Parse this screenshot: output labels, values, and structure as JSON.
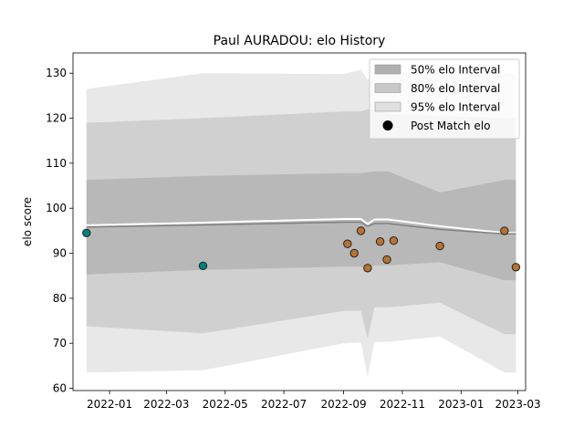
{
  "chart_data": {
    "type": "area",
    "title": "Paul AURADOU: elo History",
    "xlabel": "",
    "ylabel": "elo score",
    "xlim": [
      "2021-11-24",
      "2023-03-09"
    ],
    "ylim": [
      59.5,
      134.5
    ],
    "x_ticks": [
      "2022-01-01",
      "2022-03-01",
      "2022-05-01",
      "2022-07-01",
      "2022-09-01",
      "2022-11-01",
      "2023-01-01",
      "2023-03-01"
    ],
    "x_tick_labels": [
      "2022-01",
      "2022-03",
      "2022-05",
      "2022-07",
      "2022-09",
      "2022-11",
      "2023-01",
      "2023-03"
    ],
    "y_ticks": [
      60,
      70,
      80,
      90,
      100,
      110,
      120,
      130
    ],
    "grid": false,
    "legend_position": "top-right",
    "legend": [
      {
        "label": "50% elo Interval",
        "kind": "patch",
        "color": "#b0b0b0"
      },
      {
        "label": "80% elo Interval",
        "kind": "patch",
        "color": "#c8c8c8"
      },
      {
        "label": "95% elo Interval",
        "kind": "patch",
        "color": "#e0e0e0"
      },
      {
        "label": "Post Match elo",
        "kind": "marker",
        "color": "#000000"
      }
    ],
    "band_dates": [
      "2021-12-08",
      "2022-04-08",
      "2022-09-01",
      "2022-09-19",
      "2022-09-26",
      "2022-10-03",
      "2022-10-17",
      "2022-12-10",
      "2023-02-15",
      "2023-02-27"
    ],
    "bands": [
      {
        "name": "95% elo Interval",
        "color": "#e0e0e0",
        "upper": [
          126.5,
          130.0,
          129.8,
          130.8,
          128.5,
          130.5,
          130.0,
          130.0,
          130.0,
          130.0
        ],
        "lower": [
          63.5,
          64.0,
          70.0,
          70.2,
          62.5,
          70.3,
          70.3,
          71.5,
          63.5,
          63.5
        ]
      },
      {
        "name": "80% elo Interval",
        "color": "#c8c8c8",
        "upper": [
          119.0,
          120.0,
          121.5,
          121.5,
          122.0,
          122.0,
          121.0,
          120.5,
          120.0,
          120.0
        ],
        "lower": [
          73.8,
          72.2,
          77.2,
          77.2,
          71.0,
          78.0,
          78.0,
          79.0,
          72.0,
          72.0
        ]
      },
      {
        "name": "50% elo Interval",
        "color": "#b0b0b0",
        "upper": [
          106.3,
          107.2,
          107.8,
          107.8,
          108.0,
          108.2,
          108.2,
          103.5,
          106.3,
          106.3
        ],
        "lower": [
          85.3,
          86.3,
          87.0,
          87.0,
          86.5,
          87.3,
          87.3,
          88.0,
          84.0,
          84.0
        ]
      }
    ],
    "mean_line": {
      "color": "#ffffff",
      "x": [
        "2021-12-08",
        "2022-04-08",
        "2022-09-01",
        "2022-09-19",
        "2022-09-26",
        "2022-10-03",
        "2022-10-17",
        "2022-12-10",
        "2023-02-15",
        "2023-02-27"
      ],
      "y": [
        96.2,
        96.8,
        97.6,
        97.6,
        96.5,
        97.5,
        97.5,
        96.0,
        94.5,
        94.5
      ]
    },
    "median_line": {
      "color": "#808080",
      "x": [
        "2021-12-08",
        "2022-04-08",
        "2022-09-01",
        "2022-09-19",
        "2022-09-26",
        "2022-10-03",
        "2022-10-17",
        "2022-12-10",
        "2023-02-15",
        "2023-02-27"
      ],
      "y": [
        95.8,
        96.3,
        96.9,
        96.9,
        96.0,
        96.6,
        96.6,
        95.3,
        94.3,
        94.3
      ]
    },
    "points": [
      {
        "x": "2021-12-08",
        "y": 94.5,
        "color": "#008080"
      },
      {
        "x": "2022-04-08",
        "y": 87.2,
        "color": "#008080"
      },
      {
        "x": "2022-09-05",
        "y": 92.1,
        "color": "#b87333"
      },
      {
        "x": "2022-09-12",
        "y": 90.0,
        "color": "#b87333"
      },
      {
        "x": "2022-09-19",
        "y": 95.0,
        "color": "#b87333"
      },
      {
        "x": "2022-09-26",
        "y": 86.7,
        "color": "#b87333"
      },
      {
        "x": "2022-10-09",
        "y": 92.6,
        "color": "#b87333"
      },
      {
        "x": "2022-10-16",
        "y": 88.6,
        "color": "#b87333"
      },
      {
        "x": "2022-10-23",
        "y": 92.8,
        "color": "#b87333"
      },
      {
        "x": "2022-12-10",
        "y": 91.6,
        "color": "#b87333"
      },
      {
        "x": "2023-02-15",
        "y": 95.0,
        "color": "#b87333"
      },
      {
        "x": "2023-02-27",
        "y": 86.9,
        "color": "#b87333"
      }
    ]
  }
}
